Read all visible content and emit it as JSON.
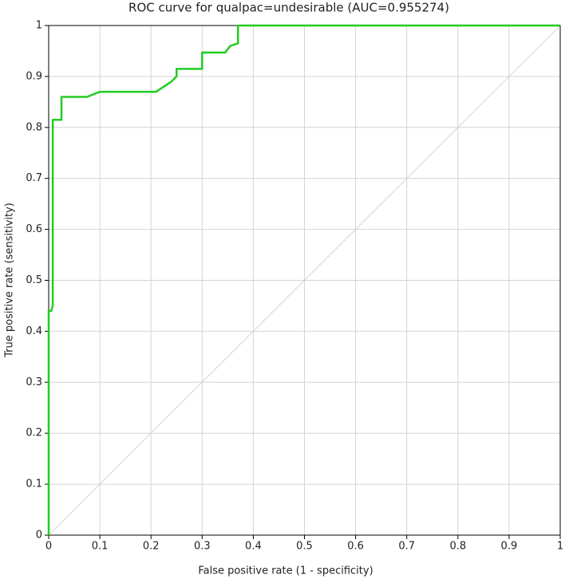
{
  "chart_data": {
    "type": "line",
    "title": "ROC curve for qualpac=undesirable (AUC=0.955274)",
    "x_label": "False positive rate (1 - specificity)",
    "y_label": "True positive rate (sensitivity)",
    "x": [
      0,
      0,
      0.005,
      0.008,
      0.008,
      0.025,
      0.025,
      0.075,
      0.1,
      0.21,
      0.24,
      0.25,
      0.25,
      0.3,
      0.3,
      0.345,
      0.355,
      0.37,
      0.37,
      1
    ],
    "values": [
      0,
      0.44,
      0.44,
      0.45,
      0.815,
      0.815,
      0.86,
      0.86,
      0.87,
      0.87,
      0.89,
      0.9,
      0.915,
      0.915,
      0.947,
      0.947,
      0.96,
      0.965,
      1,
      1
    ],
    "color": "#22cc22",
    "xlim": [
      0,
      1
    ],
    "ylim": [
      0,
      1
    ],
    "xticks": [
      0,
      0.1,
      0.2,
      0.3,
      0.4,
      0.5,
      0.6,
      0.7,
      0.8,
      0.9,
      1
    ],
    "yticks": [
      0,
      0.1,
      0.2,
      0.3,
      0.4,
      0.5,
      0.6,
      0.7,
      0.8,
      0.9,
      1
    ],
    "grid": true
  }
}
